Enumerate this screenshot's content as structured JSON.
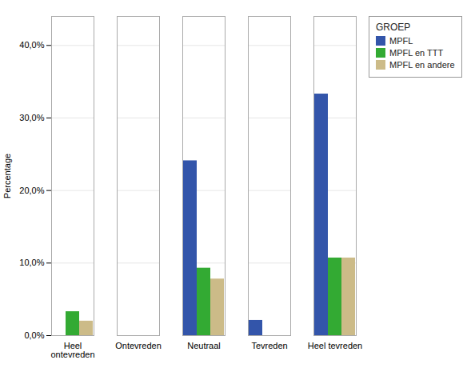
{
  "chart_data": {
    "type": "bar",
    "categories": [
      "Heel\nontevreden",
      "Ontevreden",
      "Neutraal",
      "Tevreden",
      "Heel tevreden"
    ],
    "series": [
      {
        "name": "MPFL",
        "color": "#3355aa",
        "values": [
          0.0,
          0.0,
          24.1,
          2.1,
          33.3
        ]
      },
      {
        "name": "MPFL en TTT",
        "color": "#33aa33",
        "values": [
          3.3,
          0.0,
          9.3,
          0.0,
          10.7
        ]
      },
      {
        "name": "MPFL en andere",
        "color": "#ccbb88",
        "values": [
          2.0,
          0.0,
          7.8,
          0.0,
          10.7
        ]
      }
    ],
    "legend_title": "GROEP",
    "ylabel": "Percentage",
    "ylim": [
      0,
      44
    ],
    "yticks": [
      {
        "value": 0,
        "label": "0,0%"
      },
      {
        "value": 10,
        "label": "10,0%"
      },
      {
        "value": 20,
        "label": "20,0%"
      },
      {
        "value": 30,
        "label": "30,0%"
      },
      {
        "value": 40,
        "label": "40,0%"
      }
    ],
    "grid": true,
    "legend": "right"
  }
}
